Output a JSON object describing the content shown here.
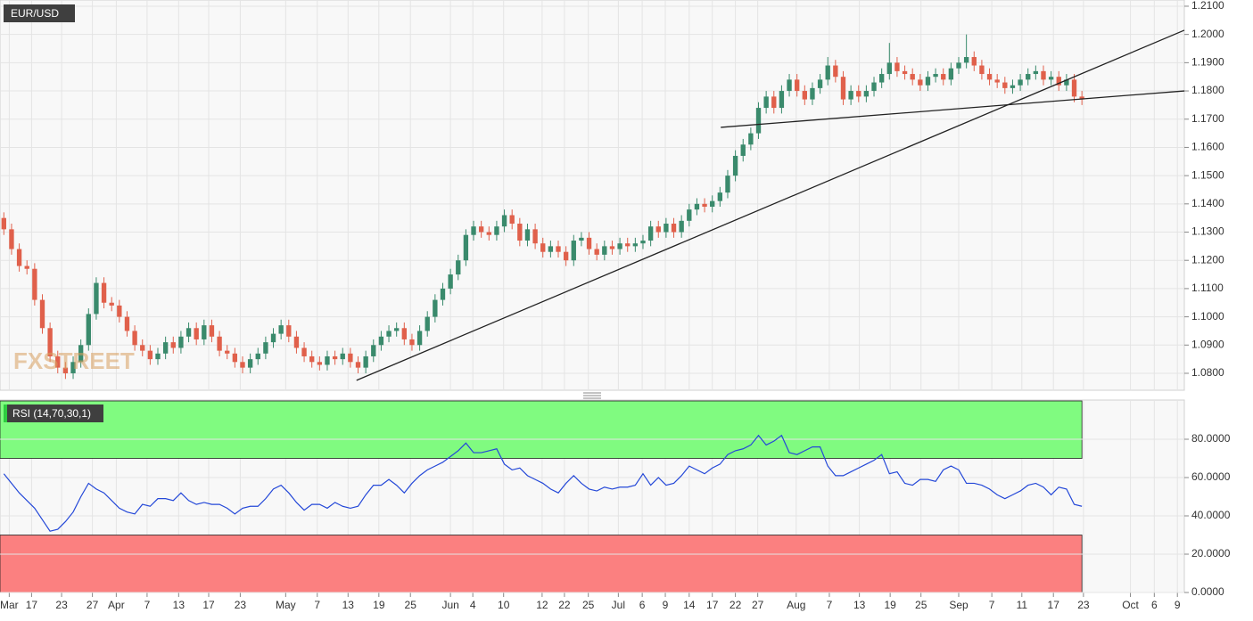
{
  "chart_data": [
    {
      "type": "candlestick",
      "title": "EUR/USD",
      "watermark": "FXSTREET",
      "up_color": "#3a8a6c",
      "down_color": "#e0604b",
      "xlim": [
        -0.5,
        153.3
      ],
      "ylim": [
        1.074,
        1.2122
      ],
      "yticks": [
        {
          "value": 1.08,
          "label": "1.0800"
        },
        {
          "value": 1.09,
          "label": "1.0900"
        },
        {
          "value": 1.1,
          "label": "1.1000"
        },
        {
          "value": 1.11,
          "label": "1.1100"
        },
        {
          "value": 1.12,
          "label": "1.1200"
        },
        {
          "value": 1.13,
          "label": "1.1300"
        },
        {
          "value": 1.14,
          "label": "1.1400"
        },
        {
          "value": 1.15,
          "label": "1.1500"
        },
        {
          "value": 1.16,
          "label": "1.1600"
        },
        {
          "value": 1.17,
          "label": "1.1700"
        },
        {
          "value": 1.18,
          "label": "1.1800"
        },
        {
          "value": 1.19,
          "label": "1.1900"
        },
        {
          "value": 1.2,
          "label": "1.2000"
        },
        {
          "value": 1.21,
          "label": "1.2100"
        }
      ],
      "xticks": [
        {
          "value": 0.7,
          "label": "Mar"
        },
        {
          "value": 3.6,
          "label": "17"
        },
        {
          "value": 7.5,
          "label": "23"
        },
        {
          "value": 11.5,
          "label": "27"
        },
        {
          "value": 14.6,
          "label": "Apr"
        },
        {
          "value": 18.6,
          "label": "7"
        },
        {
          "value": 22.7,
          "label": "13"
        },
        {
          "value": 26.6,
          "label": "17"
        },
        {
          "value": 30.7,
          "label": "23"
        },
        {
          "value": 36.6,
          "label": "May"
        },
        {
          "value": 40.7,
          "label": "7"
        },
        {
          "value": 44.7,
          "label": "13"
        },
        {
          "value": 48.7,
          "label": "19"
        },
        {
          "value": 52.8,
          "label": "25"
        },
        {
          "value": 58.0,
          "label": "Jun"
        },
        {
          "value": 60.9,
          "label": "4"
        },
        {
          "value": 64.9,
          "label": "10"
        },
        {
          "value": 69.9,
          "label": "12"
        },
        {
          "value": 72.8,
          "label": "22"
        },
        {
          "value": 75.9,
          "label": "25"
        },
        {
          "value": 79.8,
          "label": "Jul"
        },
        {
          "value": 82.9,
          "label": "6"
        },
        {
          "value": 85.9,
          "label": "9"
        },
        {
          "value": 89.0,
          "label": "14"
        },
        {
          "value": 92.0,
          "label": "17"
        },
        {
          "value": 95.0,
          "label": "22"
        },
        {
          "value": 97.9,
          "label": "27"
        },
        {
          "value": 102.9,
          "label": "Aug"
        },
        {
          "value": 107.2,
          "label": "7"
        },
        {
          "value": 111.1,
          "label": "13"
        },
        {
          "value": 115.1,
          "label": "19"
        },
        {
          "value": 119.1,
          "label": "25"
        },
        {
          "value": 124.0,
          "label": "Sep"
        },
        {
          "value": 128.3,
          "label": "7"
        },
        {
          "value": 132.2,
          "label": "11"
        },
        {
          "value": 136.3,
          "label": "17"
        },
        {
          "value": 140.2,
          "label": "23"
        },
        {
          "value": 146.3,
          "label": "Oct"
        },
        {
          "value": 149.4,
          "label": "6"
        },
        {
          "value": 152.4,
          "label": "9"
        }
      ],
      "trendlines": [
        {
          "x": [
            45.8,
            153.3
          ],
          "y": [
            1.0775,
            1.2015
          ],
          "color": "#222222"
        },
        {
          "x": [
            93.1,
            153.3
          ],
          "y": [
            1.1671,
            1.18
          ],
          "color": "#222222"
        }
      ],
      "ohlc": [
        [
          1.135,
          1.137,
          1.129,
          1.131
        ],
        [
          1.131,
          1.133,
          1.122,
          1.124
        ],
        [
          1.124,
          1.126,
          1.116,
          1.118
        ],
        [
          1.118,
          1.12,
          1.115,
          1.117
        ],
        [
          1.117,
          1.119,
          1.104,
          1.106
        ],
        [
          1.106,
          1.108,
          1.094,
          1.096
        ],
        [
          1.096,
          1.098,
          1.084,
          1.086
        ],
        [
          1.086,
          1.088,
          1.08,
          1.082
        ],
        [
          1.082,
          1.084,
          1.078,
          1.08
        ],
        [
          1.08,
          1.086,
          1.078,
          1.084
        ],
        [
          1.084,
          1.092,
          1.082,
          1.09
        ],
        [
          1.09,
          1.103,
          1.088,
          1.101
        ],
        [
          1.101,
          1.114,
          1.099,
          1.112
        ],
        [
          1.112,
          1.114,
          1.103,
          1.105
        ],
        [
          1.105,
          1.107,
          1.102,
          1.104
        ],
        [
          1.104,
          1.106,
          1.098,
          1.1
        ],
        [
          1.1,
          1.102,
          1.093,
          1.095
        ],
        [
          1.095,
          1.097,
          1.088,
          1.09
        ],
        [
          1.09,
          1.092,
          1.086,
          1.088
        ],
        [
          1.088,
          1.09,
          1.083,
          1.085
        ],
        [
          1.085,
          1.089,
          1.083,
          1.087
        ],
        [
          1.087,
          1.093,
          1.085,
          1.091
        ],
        [
          1.091,
          1.093,
          1.087,
          1.089
        ],
        [
          1.089,
          1.095,
          1.087,
          1.093
        ],
        [
          1.093,
          1.098,
          1.091,
          1.096
        ],
        [
          1.096,
          1.098,
          1.09,
          1.092
        ],
        [
          1.092,
          1.099,
          1.09,
          1.097
        ],
        [
          1.097,
          1.099,
          1.091,
          1.093
        ],
        [
          1.093,
          1.095,
          1.086,
          1.088
        ],
        [
          1.088,
          1.09,
          1.085,
          1.087
        ],
        [
          1.087,
          1.089,
          1.082,
          1.084
        ],
        [
          1.084,
          1.086,
          1.08,
          1.082
        ],
        [
          1.082,
          1.087,
          1.08,
          1.085
        ],
        [
          1.085,
          1.089,
          1.083,
          1.087
        ],
        [
          1.087,
          1.093,
          1.085,
          1.091
        ],
        [
          1.091,
          1.096,
          1.089,
          1.094
        ],
        [
          1.094,
          1.099,
          1.092,
          1.097
        ],
        [
          1.097,
          1.099,
          1.091,
          1.093
        ],
        [
          1.093,
          1.095,
          1.087,
          1.089
        ],
        [
          1.089,
          1.091,
          1.084,
          1.086
        ],
        [
          1.086,
          1.088,
          1.082,
          1.084
        ],
        [
          1.084,
          1.086,
          1.081,
          1.083
        ],
        [
          1.083,
          1.088,
          1.081,
          1.086
        ],
        [
          1.086,
          1.088,
          1.083,
          1.085
        ],
        [
          1.085,
          1.089,
          1.083,
          1.087
        ],
        [
          1.087,
          1.089,
          1.082,
          1.084
        ],
        [
          1.084,
          1.086,
          1.08,
          1.082
        ],
        [
          1.082,
          1.088,
          1.08,
          1.086
        ],
        [
          1.086,
          1.092,
          1.084,
          1.09
        ],
        [
          1.09,
          1.095,
          1.088,
          1.093
        ],
        [
          1.093,
          1.097,
          1.091,
          1.095
        ],
        [
          1.095,
          1.098,
          1.093,
          1.096
        ],
        [
          1.096,
          1.098,
          1.09,
          1.092
        ],
        [
          1.092,
          1.094,
          1.088,
          1.09
        ],
        [
          1.09,
          1.097,
          1.088,
          1.095
        ],
        [
          1.095,
          1.102,
          1.093,
          1.1
        ],
        [
          1.1,
          1.108,
          1.098,
          1.106
        ],
        [
          1.106,
          1.112,
          1.104,
          1.11
        ],
        [
          1.11,
          1.117,
          1.108,
          1.115
        ],
        [
          1.115,
          1.122,
          1.113,
          1.12
        ],
        [
          1.12,
          1.131,
          1.118,
          1.129
        ],
        [
          1.129,
          1.134,
          1.127,
          1.132
        ],
        [
          1.132,
          1.134,
          1.128,
          1.13
        ],
        [
          1.13,
          1.132,
          1.127,
          1.129
        ],
        [
          1.129,
          1.134,
          1.127,
          1.132
        ],
        [
          1.132,
          1.138,
          1.13,
          1.136
        ],
        [
          1.136,
          1.138,
          1.131,
          1.133
        ],
        [
          1.133,
          1.135,
          1.125,
          1.127
        ],
        [
          1.127,
          1.133,
          1.125,
          1.131
        ],
        [
          1.131,
          1.133,
          1.124,
          1.126
        ],
        [
          1.126,
          1.128,
          1.121,
          1.123
        ],
        [
          1.123,
          1.127,
          1.121,
          1.125
        ],
        [
          1.125,
          1.127,
          1.121,
          1.123
        ],
        [
          1.123,
          1.125,
          1.118,
          1.12
        ],
        [
          1.12,
          1.129,
          1.118,
          1.127
        ],
        [
          1.127,
          1.13,
          1.125,
          1.128
        ],
        [
          1.128,
          1.13,
          1.122,
          1.124
        ],
        [
          1.124,
          1.126,
          1.12,
          1.122
        ],
        [
          1.122,
          1.127,
          1.12,
          1.125
        ],
        [
          1.125,
          1.127,
          1.122,
          1.124
        ],
        [
          1.124,
          1.128,
          1.122,
          1.126
        ],
        [
          1.126,
          1.128,
          1.123,
          1.125
        ],
        [
          1.125,
          1.128,
          1.123,
          1.126
        ],
        [
          1.126,
          1.129,
          1.124,
          1.127
        ],
        [
          1.127,
          1.134,
          1.125,
          1.132
        ],
        [
          1.132,
          1.134,
          1.128,
          1.13
        ],
        [
          1.13,
          1.135,
          1.128,
          1.133
        ],
        [
          1.133,
          1.135,
          1.128,
          1.13
        ],
        [
          1.13,
          1.136,
          1.128,
          1.134
        ],
        [
          1.134,
          1.14,
          1.132,
          1.138
        ],
        [
          1.138,
          1.142,
          1.136,
          1.14
        ],
        [
          1.14,
          1.142,
          1.137,
          1.139
        ],
        [
          1.139,
          1.143,
          1.137,
          1.141
        ],
        [
          1.141,
          1.146,
          1.139,
          1.144
        ],
        [
          1.144,
          1.152,
          1.142,
          1.15
        ],
        [
          1.15,
          1.159,
          1.148,
          1.157
        ],
        [
          1.157,
          1.163,
          1.155,
          1.161
        ],
        [
          1.161,
          1.167,
          1.159,
          1.165
        ],
        [
          1.165,
          1.176,
          1.163,
          1.174
        ],
        [
          1.174,
          1.18,
          1.172,
          1.178
        ],
        [
          1.178,
          1.18,
          1.172,
          1.174
        ],
        [
          1.174,
          1.182,
          1.172,
          1.18
        ],
        [
          1.18,
          1.186,
          1.178,
          1.184
        ],
        [
          1.184,
          1.186,
          1.178,
          1.18
        ],
        [
          1.18,
          1.182,
          1.175,
          1.177
        ],
        [
          1.177,
          1.183,
          1.175,
          1.181
        ],
        [
          1.181,
          1.186,
          1.179,
          1.184
        ],
        [
          1.184,
          1.192,
          1.182,
          1.189
        ],
        [
          1.189,
          1.191,
          1.183,
          1.185
        ],
        [
          1.185,
          1.187,
          1.175,
          1.177
        ],
        [
          1.177,
          1.182,
          1.175,
          1.18
        ],
        [
          1.18,
          1.182,
          1.176,
          1.178
        ],
        [
          1.178,
          1.182,
          1.176,
          1.18
        ],
        [
          1.18,
          1.185,
          1.178,
          1.183
        ],
        [
          1.183,
          1.188,
          1.181,
          1.186
        ],
        [
          1.186,
          1.197,
          1.184,
          1.19
        ],
        [
          1.19,
          1.192,
          1.185,
          1.187
        ],
        [
          1.187,
          1.189,
          1.184,
          1.186
        ],
        [
          1.186,
          1.188,
          1.182,
          1.184
        ],
        [
          1.184,
          1.186,
          1.18,
          1.182
        ],
        [
          1.182,
          1.187,
          1.18,
          1.185
        ],
        [
          1.185,
          1.188,
          1.183,
          1.186
        ],
        [
          1.186,
          1.188,
          1.182,
          1.184
        ],
        [
          1.184,
          1.19,
          1.182,
          1.188
        ],
        [
          1.188,
          1.192,
          1.186,
          1.19
        ],
        [
          1.19,
          1.2,
          1.188,
          1.192
        ],
        [
          1.192,
          1.194,
          1.187,
          1.189
        ],
        [
          1.189,
          1.191,
          1.184,
          1.186
        ],
        [
          1.186,
          1.188,
          1.182,
          1.184
        ],
        [
          1.184,
          1.186,
          1.181,
          1.183
        ],
        [
          1.183,
          1.185,
          1.179,
          1.181
        ],
        [
          1.181,
          1.184,
          1.179,
          1.182
        ],
        [
          1.182,
          1.186,
          1.18,
          1.184
        ],
        [
          1.184,
          1.188,
          1.182,
          1.186
        ],
        [
          1.186,
          1.189,
          1.184,
          1.187
        ],
        [
          1.187,
          1.189,
          1.182,
          1.184
        ],
        [
          1.184,
          1.187,
          1.182,
          1.185
        ],
        [
          1.185,
          1.187,
          1.18,
          1.182
        ],
        [
          1.182,
          1.186,
          1.18,
          1.184
        ],
        [
          1.184,
          1.186,
          1.176,
          1.178
        ],
        [
          1.178,
          1.18,
          1.175,
          1.177
        ]
      ]
    },
    {
      "type": "line",
      "title": "RSI (14,70,30,1)",
      "color": "#2448d8",
      "xlim": [
        -0.5,
        153.3
      ],
      "ylim": [
        0,
        100
      ],
      "yticks": [
        {
          "value": 0,
          "label": "0.0000"
        },
        {
          "value": 20,
          "label": "20.0000"
        },
        {
          "value": 40,
          "label": "40.0000"
        },
        {
          "value": 60,
          "label": "60.0000"
        },
        {
          "value": 80,
          "label": "80.0000"
        }
      ],
      "zones": [
        {
          "range": [
            70,
            100
          ],
          "color": "#80fb80"
        },
        {
          "range": [
            0,
            30
          ],
          "color": "#fb8080"
        }
      ],
      "values": [
        62,
        57,
        52,
        48,
        44,
        38,
        32,
        33,
        37,
        42,
        50,
        57,
        54,
        52,
        48,
        44,
        42,
        41,
        46,
        45,
        49,
        49,
        48,
        52,
        48,
        46,
        47,
        46,
        46,
        44,
        41,
        44,
        45,
        45,
        49,
        54,
        56,
        52,
        47,
        43,
        46,
        46,
        44,
        47,
        45,
        44,
        45,
        51,
        56,
        56,
        59,
        56,
        52,
        57,
        61,
        64,
        66,
        68,
        71,
        74,
        78,
        73,
        73,
        74,
        75,
        67,
        64,
        65,
        61,
        59,
        57,
        54,
        52,
        57,
        61,
        57,
        54,
        53,
        55,
        54,
        55,
        55,
        56,
        62,
        56,
        60,
        56,
        57,
        61,
        66,
        64,
        62,
        65,
        67,
        72,
        74,
        75,
        77,
        82,
        77,
        79,
        82,
        73,
        72,
        74,
        76,
        76,
        66,
        61,
        61,
        63,
        65,
        67,
        69,
        72,
        62,
        63,
        57,
        56,
        59,
        59,
        58,
        64,
        66,
        64,
        57,
        57,
        56,
        54,
        51,
        49,
        51,
        53,
        56,
        57,
        55,
        51,
        55,
        54,
        46,
        45
      ]
    }
  ]
}
